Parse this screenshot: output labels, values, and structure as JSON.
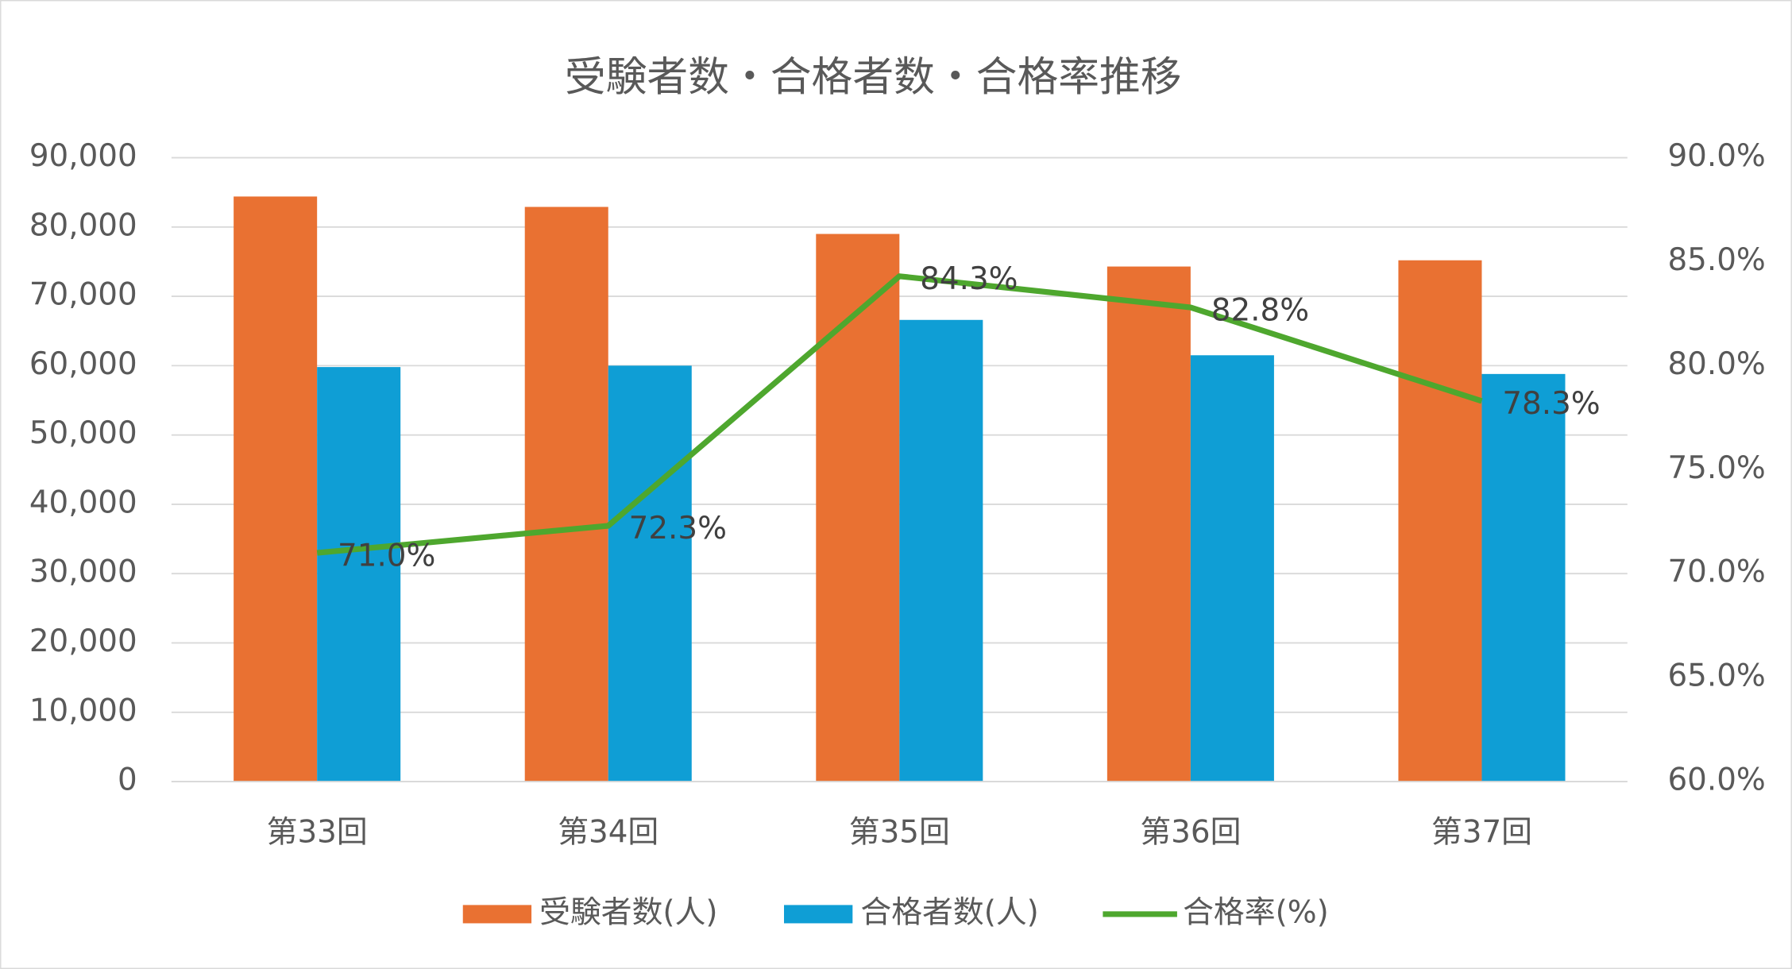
{
  "chart_data": {
    "type": "bar",
    "title": "受験者数・合格者数・合格率推移",
    "categories": [
      "第33回",
      "第34回",
      "第35回",
      "第36回",
      "第37回"
    ],
    "series": [
      {
        "name": "受験者数(人)",
        "type": "bar",
        "color": "#e97132",
        "values": [
          84400,
          82900,
          79000,
          74300,
          75200
        ]
      },
      {
        "name": "合格者数(人)",
        "type": "bar",
        "color": "#0f9ed5",
        "values": [
          59800,
          60000,
          66600,
          61500,
          58800
        ]
      },
      {
        "name": "合格率(%)",
        "type": "line",
        "axis": "y2",
        "color": "#4ea72e",
        "values": [
          71.0,
          72.3,
          84.3,
          82.8,
          78.3
        ],
        "value_labels": [
          "71.0%",
          "72.3%",
          "84.3%",
          "82.8%",
          "78.3%"
        ]
      }
    ],
    "ylim": [
      0,
      90000
    ],
    "yticks": [
      0,
      {
        "value": 10000,
        "label": "10,000"
      },
      {
        "value": 20000,
        "label": "20,000"
      },
      {
        "value": 30000,
        "label": "30,000"
      },
      {
        "value": 40000,
        "label": "40,000"
      },
      {
        "value": 50000,
        "label": "50,000"
      },
      {
        "value": 60000,
        "label": "60,000"
      },
      {
        "value": 70000,
        "label": "70,000"
      },
      {
        "value": 80000,
        "label": "80,000"
      },
      {
        "value": 90000,
        "label": "90,000"
      }
    ],
    "y2lim": [
      60,
      90
    ],
    "y2ticks": [
      {
        "value": 60,
        "label": "60.0%"
      },
      {
        "value": 65,
        "label": "65.0%"
      },
      {
        "value": 70,
        "label": "70.0%"
      },
      {
        "value": 75,
        "label": "75.0%"
      },
      {
        "value": 80,
        "label": "80.0%"
      },
      {
        "value": 85,
        "label": "85.0%"
      },
      {
        "value": 90,
        "label": "90.0%"
      }
    ],
    "grid": true,
    "legend": "bottom"
  }
}
